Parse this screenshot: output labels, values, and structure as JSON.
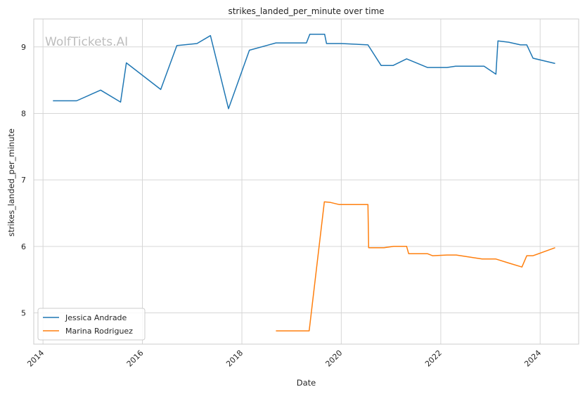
{
  "chart_data": {
    "type": "line",
    "title": "strikes_landed_per_minute over time",
    "xlabel": "Date",
    "ylabel": "strikes_landed_per_minute",
    "watermark": "WolfTickets.AI",
    "x_ticks": [
      "2014",
      "2016",
      "2018",
      "2020",
      "2022",
      "2024"
    ],
    "y_ticks": [
      "5",
      "6",
      "7",
      "8",
      "9"
    ],
    "xlim": [
      "2013-10-25",
      "2024-10-10"
    ],
    "ylim": [
      4.53,
      9.42
    ],
    "grid": true,
    "legend_position": "lower-left",
    "series": [
      {
        "name": "Jessica Andrade",
        "color": "#1f77b4",
        "points": [
          [
            "2014-03-15",
            8.19
          ],
          [
            "2014-09-05",
            8.19
          ],
          [
            "2015-02-28",
            8.35
          ],
          [
            "2015-07-25",
            8.17
          ],
          [
            "2015-09-05",
            8.76
          ],
          [
            "2016-05-15",
            8.36
          ],
          [
            "2016-09-10",
            9.02
          ],
          [
            "2017-02-05",
            9.05
          ],
          [
            "2017-05-15",
            9.17
          ],
          [
            "2017-09-25",
            8.07
          ],
          [
            "2018-02-25",
            8.95
          ],
          [
            "2018-09-08",
            9.06
          ],
          [
            "2019-04-20",
            9.06
          ],
          [
            "2019-05-15",
            9.19
          ],
          [
            "2019-09-01",
            9.19
          ],
          [
            "2019-09-15",
            9.05
          ],
          [
            "2020-01-01",
            9.05
          ],
          [
            "2020-07-15",
            9.03
          ],
          [
            "2020-10-20",
            8.72
          ],
          [
            "2021-01-15",
            8.72
          ],
          [
            "2021-04-25",
            8.82
          ],
          [
            "2021-09-25",
            8.69
          ],
          [
            "2022-02-15",
            8.69
          ],
          [
            "2022-04-20",
            8.71
          ],
          [
            "2022-11-15",
            8.71
          ],
          [
            "2023-02-10",
            8.59
          ],
          [
            "2023-02-25",
            9.09
          ],
          [
            "2023-05-15",
            9.07
          ],
          [
            "2023-08-10",
            9.03
          ],
          [
            "2023-09-25",
            9.03
          ],
          [
            "2023-11-10",
            8.83
          ],
          [
            "2024-04-20",
            8.75
          ]
        ]
      },
      {
        "name": "Marina Rodriguez",
        "color": "#ff7f0e",
        "points": [
          [
            "2018-09-08",
            4.73
          ],
          [
            "2019-05-10",
            4.73
          ],
          [
            "2019-08-30",
            6.67
          ],
          [
            "2019-10-15",
            6.66
          ],
          [
            "2019-12-15",
            6.63
          ],
          [
            "2020-07-15",
            6.63
          ],
          [
            "2020-07-20",
            5.98
          ],
          [
            "2020-11-10",
            5.98
          ],
          [
            "2021-01-20",
            6.0
          ],
          [
            "2021-04-25",
            6.0
          ],
          [
            "2021-05-10",
            5.89
          ],
          [
            "2021-09-25",
            5.89
          ],
          [
            "2021-11-01",
            5.86
          ],
          [
            "2022-02-15",
            5.87
          ],
          [
            "2022-04-25",
            5.87
          ],
          [
            "2022-11-01",
            5.81
          ],
          [
            "2023-02-10",
            5.81
          ],
          [
            "2023-05-15",
            5.75
          ],
          [
            "2023-08-20",
            5.69
          ],
          [
            "2023-09-25",
            5.86
          ],
          [
            "2023-11-10",
            5.86
          ],
          [
            "2024-04-20",
            5.98
          ]
        ]
      }
    ]
  }
}
